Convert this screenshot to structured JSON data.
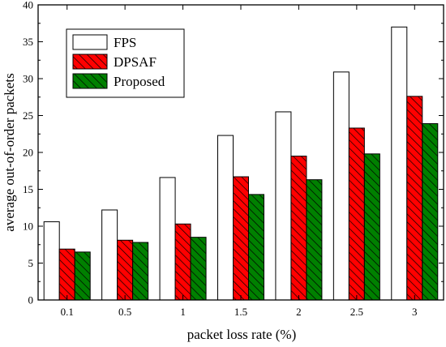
{
  "chart_data": {
    "type": "bar",
    "xlabel": "packet loss rate (%)",
    "ylabel": "average out-of-order packets",
    "categories": [
      "0.1",
      "0.5",
      "1",
      "1.5",
      "2",
      "2.5",
      "3"
    ],
    "series": [
      {
        "name": "FPS",
        "values": [
          10.6,
          12.2,
          16.6,
          22.3,
          25.5,
          30.9,
          37.0
        ],
        "color": "#ffffff",
        "pattern": "none"
      },
      {
        "name": "DPSAF",
        "values": [
          6.9,
          8.1,
          10.3,
          16.7,
          19.5,
          23.3,
          27.6
        ],
        "color": "#ff0000",
        "pattern": "hatch"
      },
      {
        "name": "Proposed",
        "values": [
          6.5,
          7.8,
          8.5,
          14.3,
          16.3,
          19.8,
          23.9
        ],
        "color": "#008000",
        "pattern": "hatch"
      }
    ],
    "ylim": [
      0,
      40
    ],
    "yticks": [
      0,
      5,
      10,
      15,
      20,
      25,
      30,
      35,
      40
    ],
    "legend": "top-left",
    "grid": false
  }
}
